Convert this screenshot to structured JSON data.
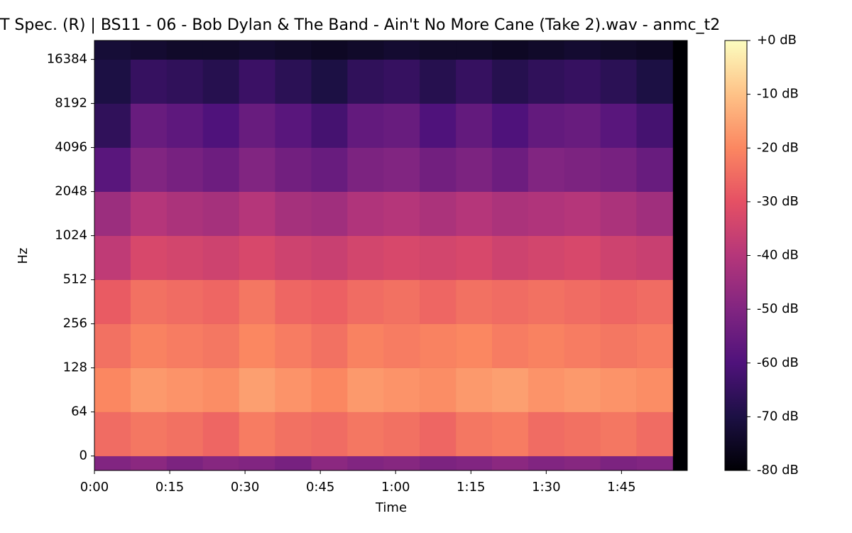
{
  "chart_data": {
    "type": "spectrogram",
    "title": "T Spec. (R) | BS11 - 06 - Bob Dylan & The Band - Ain't No More Cane (Take 2).wav - anmc_t2",
    "xlabel": "Time",
    "ylabel": "Hz",
    "xlim": [
      0,
      118.1
    ],
    "xticks": [
      {
        "value": 0,
        "label": "0:00"
      },
      {
        "value": 15,
        "label": "0:15"
      },
      {
        "value": 30,
        "label": "0:30"
      },
      {
        "value": 45,
        "label": "0:45"
      },
      {
        "value": 60,
        "label": "1:00"
      },
      {
        "value": 75,
        "label": "1:15"
      },
      {
        "value": 90,
        "label": "1:30"
      },
      {
        "value": 105,
        "label": "1:45"
      }
    ],
    "yscale": "symlog",
    "linthresh": 64,
    "base": 2,
    "ylim": [
      -21,
      22050
    ],
    "yticks": [
      0,
      64,
      128,
      256,
      512,
      1024,
      2048,
      4096,
      8192,
      16384
    ],
    "time_edges": [
      0,
      7.2,
      14.4,
      21.6,
      28.8,
      36,
      43.2,
      50.4,
      57.6,
      64.8,
      72,
      79.2,
      86.4,
      93.6,
      100.8,
      108,
      115.2
    ],
    "freq_edges": [
      -21,
      0,
      64,
      128,
      256,
      512,
      1024,
      2048,
      4096,
      8192,
      16384,
      22050
    ],
    "z": [
      [
        -50,
        -48,
        -51,
        -49,
        -50,
        -52,
        -48,
        -50,
        -49,
        -51,
        -50,
        -48,
        -50,
        -49,
        -51,
        -50
      ],
      [
        -25,
        -23,
        -24,
        -26,
        -22,
        -24,
        -25,
        -23,
        -24,
        -26,
        -23,
        -22,
        -25,
        -24,
        -23,
        -25
      ],
      [
        -20,
        -17,
        -18,
        -19,
        -16,
        -18,
        -20,
        -17,
        -18,
        -19,
        -17,
        -16,
        -18,
        -17,
        -18,
        -19
      ],
      [
        -24,
        -21,
        -22,
        -23,
        -20,
        -22,
        -24,
        -21,
        -22,
        -21,
        -20,
        -22,
        -21,
        -22,
        -23,
        -22
      ],
      [
        -28,
        -24,
        -25,
        -26,
        -23,
        -26,
        -27,
        -25,
        -24,
        -26,
        -24,
        -25,
        -24,
        -25,
        -26,
        -25
      ],
      [
        -38,
        -33,
        -34,
        -35,
        -33,
        -35,
        -36,
        -34,
        -33,
        -34,
        -33,
        -35,
        -34,
        -33,
        -35,
        -36
      ],
      [
        -45,
        -40,
        -42,
        -43,
        -40,
        -43,
        -44,
        -41,
        -40,
        -42,
        -40,
        -42,
        -41,
        -40,
        -42,
        -44
      ],
      [
        -58,
        -50,
        -52,
        -54,
        -50,
        -53,
        -55,
        -51,
        -50,
        -53,
        -51,
        -54,
        -50,
        -51,
        -52,
        -55
      ],
      [
        -66,
        -55,
        -57,
        -60,
        -55,
        -58,
        -62,
        -56,
        -55,
        -60,
        -56,
        -60,
        -56,
        -55,
        -58,
        -62
      ],
      [
        -70,
        -65,
        -66,
        -68,
        -64,
        -67,
        -70,
        -66,
        -65,
        -68,
        -65,
        -68,
        -66,
        -65,
        -67,
        -70
      ],
      [
        -72,
        -73,
        -74,
        -74,
        -73,
        -74,
        -75,
        -74,
        -73,
        -74,
        -74,
        -75,
        -74,
        -73,
        -74,
        -75
      ]
    ],
    "clim": [
      -80,
      0
    ],
    "colormap": [
      "#000004",
      "#1c1044",
      "#4f127b",
      "#812581",
      "#b5367a",
      "#e55064",
      "#fb8761",
      "#fec287",
      "#fcfdbf"
    ],
    "colorbar_ticks": [
      {
        "value": 0,
        "label": "+0 dB"
      },
      {
        "value": -10,
        "label": "-10 dB"
      },
      {
        "value": -20,
        "label": "-20 dB"
      },
      {
        "value": -30,
        "label": "-30 dB"
      },
      {
        "value": -40,
        "label": "-40 dB"
      },
      {
        "value": -50,
        "label": "-50 dB"
      },
      {
        "value": -60,
        "label": "-60 dB"
      },
      {
        "value": -70,
        "label": "-70 dB"
      },
      {
        "value": -80,
        "label": "-80 dB"
      }
    ]
  }
}
